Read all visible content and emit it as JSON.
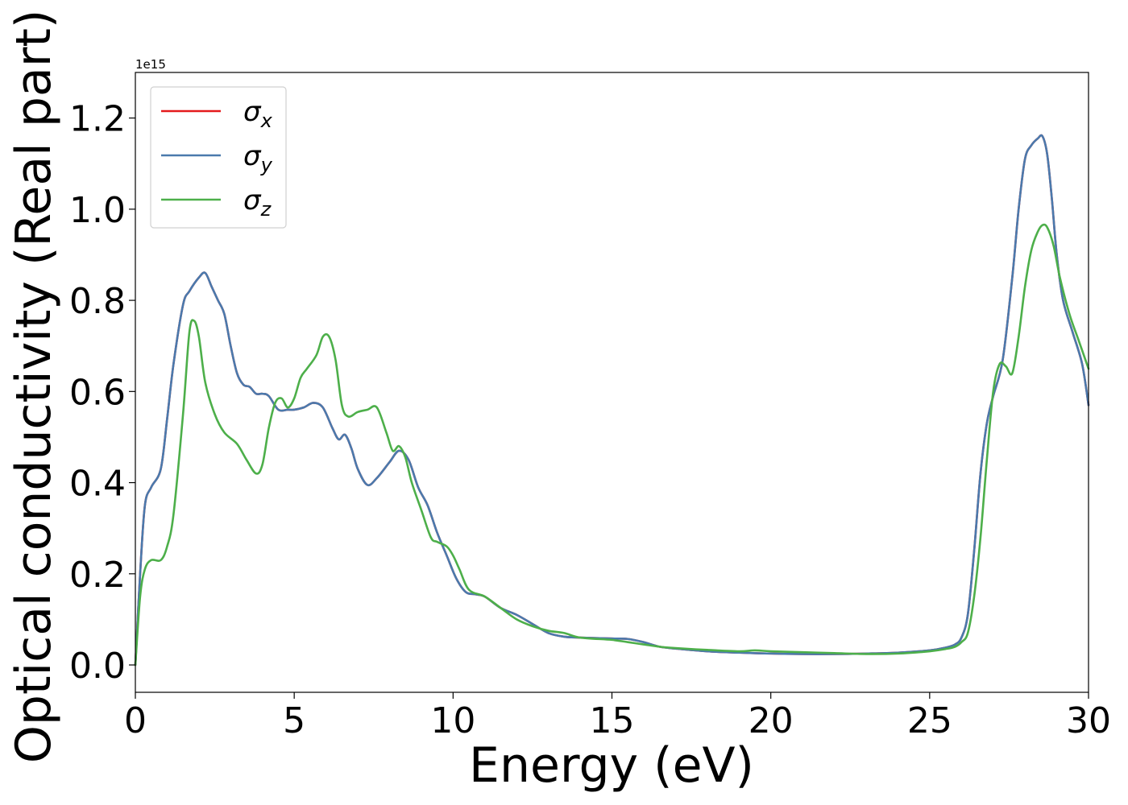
{
  "chart_data": {
    "type": "line",
    "title": "",
    "xlabel": "Energy (eV)",
    "ylabel": "Optical conductivity (Real part)",
    "y_offset_label": "1e15",
    "xlim": [
      0,
      30
    ],
    "ylim": [
      -0.06,
      1.3
    ],
    "x_ticks": [
      0,
      5,
      10,
      15,
      20,
      25,
      30
    ],
    "x_tick_labels": [
      "0",
      "5",
      "10",
      "15",
      "20",
      "25",
      "30"
    ],
    "y_ticks": [
      0.0,
      0.2,
      0.4,
      0.6,
      0.8,
      1.0,
      1.2
    ],
    "y_tick_labels": [
      "0.0",
      "0.2",
      "0.4",
      "0.6",
      "0.8",
      "1.0",
      "1.2"
    ],
    "grid": false,
    "legend_position": "top-left",
    "series": [
      {
        "name": "σx",
        "symbol": "σ",
        "subscript": "x",
        "color": "#e41a1c",
        "x": [
          0,
          0.15,
          0.3,
          0.5,
          0.8,
          1.0,
          1.2,
          1.5,
          1.7,
          2.0,
          2.2,
          2.4,
          2.6,
          2.8,
          3.0,
          3.2,
          3.4,
          3.6,
          3.8,
          4.0,
          4.2,
          4.5,
          4.8,
          5.0,
          5.3,
          5.6,
          5.9,
          6.2,
          6.4,
          6.6,
          6.8,
          7.0,
          7.3,
          7.6,
          8.0,
          8.3,
          8.6,
          8.9,
          9.2,
          9.5,
          9.8,
          10.1,
          10.4,
          10.7,
          11.0,
          11.5,
          12.0,
          12.5,
          13.0,
          13.5,
          14.0,
          15.0,
          15.5,
          16.0,
          16.5,
          17.0,
          18.0,
          19.0,
          20.0,
          21.0,
          22.0,
          23.0,
          24.0,
          25.0,
          25.5,
          25.8,
          26.0,
          26.2,
          26.4,
          26.6,
          26.8,
          27.0,
          27.3,
          27.6,
          27.8,
          28.0,
          28.2,
          28.4,
          28.55,
          28.7,
          28.85,
          29.0,
          29.2,
          29.5,
          29.8,
          30.0
        ],
        "values": [
          0.0,
          0.2,
          0.35,
          0.39,
          0.43,
          0.54,
          0.66,
          0.79,
          0.82,
          0.85,
          0.86,
          0.83,
          0.8,
          0.77,
          0.7,
          0.64,
          0.615,
          0.61,
          0.595,
          0.595,
          0.59,
          0.56,
          0.56,
          0.56,
          0.565,
          0.575,
          0.565,
          0.52,
          0.495,
          0.505,
          0.475,
          0.43,
          0.395,
          0.41,
          0.445,
          0.47,
          0.45,
          0.39,
          0.35,
          0.29,
          0.24,
          0.19,
          0.16,
          0.155,
          0.15,
          0.125,
          0.11,
          0.09,
          0.07,
          0.062,
          0.06,
          0.058,
          0.057,
          0.05,
          0.04,
          0.036,
          0.03,
          0.027,
          0.025,
          0.024,
          0.024,
          0.025,
          0.027,
          0.032,
          0.038,
          0.045,
          0.06,
          0.11,
          0.25,
          0.42,
          0.53,
          0.59,
          0.67,
          0.85,
          1.0,
          1.11,
          1.14,
          1.155,
          1.16,
          1.12,
          1.02,
          0.9,
          0.8,
          0.73,
          0.66,
          0.57
        ]
      },
      {
        "name": "σy",
        "symbol": "σ",
        "subscript": "y",
        "color": "#4a7aad",
        "x": [
          0,
          0.15,
          0.3,
          0.5,
          0.8,
          1.0,
          1.2,
          1.5,
          1.7,
          2.0,
          2.2,
          2.4,
          2.6,
          2.8,
          3.0,
          3.2,
          3.4,
          3.6,
          3.8,
          4.0,
          4.2,
          4.5,
          4.8,
          5.0,
          5.3,
          5.6,
          5.9,
          6.2,
          6.4,
          6.6,
          6.8,
          7.0,
          7.3,
          7.6,
          8.0,
          8.3,
          8.6,
          8.9,
          9.2,
          9.5,
          9.8,
          10.1,
          10.4,
          10.7,
          11.0,
          11.5,
          12.0,
          12.5,
          13.0,
          13.5,
          14.0,
          15.0,
          15.5,
          16.0,
          16.5,
          17.0,
          18.0,
          19.0,
          20.0,
          21.0,
          22.0,
          23.0,
          24.0,
          25.0,
          25.5,
          25.8,
          26.0,
          26.2,
          26.4,
          26.6,
          26.8,
          27.0,
          27.3,
          27.6,
          27.8,
          28.0,
          28.2,
          28.4,
          28.55,
          28.7,
          28.85,
          29.0,
          29.2,
          29.5,
          29.8,
          30.0
        ],
        "values": [
          0.0,
          0.2,
          0.35,
          0.39,
          0.43,
          0.54,
          0.66,
          0.79,
          0.82,
          0.85,
          0.86,
          0.83,
          0.8,
          0.77,
          0.7,
          0.64,
          0.615,
          0.61,
          0.595,
          0.595,
          0.59,
          0.56,
          0.56,
          0.56,
          0.565,
          0.575,
          0.565,
          0.52,
          0.495,
          0.505,
          0.475,
          0.43,
          0.395,
          0.41,
          0.445,
          0.47,
          0.45,
          0.39,
          0.35,
          0.29,
          0.24,
          0.19,
          0.16,
          0.155,
          0.15,
          0.125,
          0.11,
          0.09,
          0.07,
          0.062,
          0.06,
          0.058,
          0.057,
          0.05,
          0.04,
          0.036,
          0.03,
          0.027,
          0.025,
          0.024,
          0.024,
          0.025,
          0.027,
          0.032,
          0.038,
          0.045,
          0.06,
          0.11,
          0.25,
          0.42,
          0.53,
          0.59,
          0.67,
          0.85,
          1.0,
          1.11,
          1.14,
          1.155,
          1.16,
          1.12,
          1.02,
          0.9,
          0.8,
          0.73,
          0.66,
          0.57
        ]
      },
      {
        "name": "σz",
        "symbol": "σ",
        "subscript": "z",
        "color": "#4daf4a",
        "x": [
          0,
          0.15,
          0.3,
          0.5,
          0.8,
          1.0,
          1.2,
          1.5,
          1.7,
          1.85,
          2.0,
          2.2,
          2.5,
          2.8,
          3.2,
          3.5,
          3.8,
          4.0,
          4.2,
          4.4,
          4.6,
          4.8,
          5.0,
          5.2,
          5.4,
          5.7,
          5.9,
          6.1,
          6.3,
          6.5,
          6.7,
          7.0,
          7.3,
          7.6,
          7.9,
          8.1,
          8.3,
          8.5,
          8.7,
          9.0,
          9.3,
          9.5,
          9.8,
          10.0,
          10.2,
          10.5,
          11.0,
          11.5,
          12.0,
          12.5,
          13.0,
          13.5,
          14.0,
          15.0,
          15.5,
          16.0,
          16.5,
          17.0,
          18.0,
          19.0,
          19.5,
          20.0,
          21.0,
          22.0,
          23.0,
          24.0,
          25.0,
          25.5,
          25.8,
          26.0,
          26.2,
          26.4,
          26.6,
          26.8,
          27.0,
          27.2,
          27.4,
          27.6,
          27.8,
          28.0,
          28.2,
          28.4,
          28.55,
          28.7,
          28.9,
          29.1,
          29.4,
          29.7,
          30.0
        ],
        "values": [
          0.0,
          0.15,
          0.21,
          0.23,
          0.23,
          0.26,
          0.33,
          0.55,
          0.73,
          0.755,
          0.72,
          0.62,
          0.55,
          0.51,
          0.485,
          0.45,
          0.42,
          0.44,
          0.52,
          0.575,
          0.585,
          0.565,
          0.585,
          0.63,
          0.65,
          0.68,
          0.72,
          0.72,
          0.67,
          0.57,
          0.545,
          0.555,
          0.56,
          0.565,
          0.51,
          0.47,
          0.48,
          0.455,
          0.4,
          0.34,
          0.28,
          0.27,
          0.26,
          0.24,
          0.21,
          0.165,
          0.15,
          0.125,
          0.1,
          0.085,
          0.075,
          0.07,
          0.06,
          0.055,
          0.05,
          0.045,
          0.04,
          0.037,
          0.033,
          0.03,
          0.032,
          0.03,
          0.028,
          0.026,
          0.024,
          0.025,
          0.03,
          0.035,
          0.04,
          0.05,
          0.07,
          0.15,
          0.28,
          0.45,
          0.6,
          0.66,
          0.655,
          0.64,
          0.72,
          0.83,
          0.91,
          0.95,
          0.965,
          0.96,
          0.92,
          0.85,
          0.77,
          0.71,
          0.65
        ]
      }
    ]
  }
}
